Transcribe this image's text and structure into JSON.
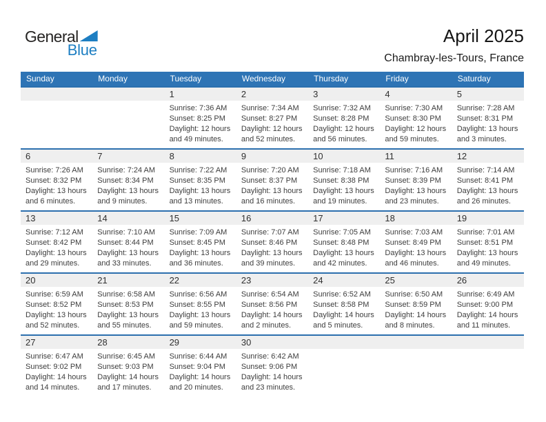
{
  "logo": {
    "part1": "General",
    "part2": "Blue"
  },
  "header": {
    "title": "April 2025",
    "subtitle": "Chambray-les-Tours, France"
  },
  "colors": {
    "header_blue": "#2e74b5",
    "row_border_blue": "#2b6fae",
    "day_strip_gray": "#efefef",
    "logo_blue": "#1d7ec2"
  },
  "calendar": {
    "weekdays": [
      "Sunday",
      "Monday",
      "Tuesday",
      "Wednesday",
      "Thursday",
      "Friday",
      "Saturday"
    ],
    "weeks": [
      {
        "cells": [
          {
            "day": ""
          },
          {
            "day": ""
          },
          {
            "day": "1",
            "sunrise": "Sunrise: 7:36 AM",
            "sunset": "Sunset: 8:25 PM",
            "daylight_line1": "Daylight: 12 hours",
            "daylight_line2": "and 49 minutes."
          },
          {
            "day": "2",
            "sunrise": "Sunrise: 7:34 AM",
            "sunset": "Sunset: 8:27 PM",
            "daylight_line1": "Daylight: 12 hours",
            "daylight_line2": "and 52 minutes."
          },
          {
            "day": "3",
            "sunrise": "Sunrise: 7:32 AM",
            "sunset": "Sunset: 8:28 PM",
            "daylight_line1": "Daylight: 12 hours",
            "daylight_line2": "and 56 minutes."
          },
          {
            "day": "4",
            "sunrise": "Sunrise: 7:30 AM",
            "sunset": "Sunset: 8:30 PM",
            "daylight_line1": "Daylight: 12 hours",
            "daylight_line2": "and 59 minutes."
          },
          {
            "day": "5",
            "sunrise": "Sunrise: 7:28 AM",
            "sunset": "Sunset: 8:31 PM",
            "daylight_line1": "Daylight: 13 hours",
            "daylight_line2": "and 3 minutes."
          }
        ]
      },
      {
        "cells": [
          {
            "day": "6",
            "sunrise": "Sunrise: 7:26 AM",
            "sunset": "Sunset: 8:32 PM",
            "daylight_line1": "Daylight: 13 hours",
            "daylight_line2": "and 6 minutes."
          },
          {
            "day": "7",
            "sunrise": "Sunrise: 7:24 AM",
            "sunset": "Sunset: 8:34 PM",
            "daylight_line1": "Daylight: 13 hours",
            "daylight_line2": "and 9 minutes."
          },
          {
            "day": "8",
            "sunrise": "Sunrise: 7:22 AM",
            "sunset": "Sunset: 8:35 PM",
            "daylight_line1": "Daylight: 13 hours",
            "daylight_line2": "and 13 minutes."
          },
          {
            "day": "9",
            "sunrise": "Sunrise: 7:20 AM",
            "sunset": "Sunset: 8:37 PM",
            "daylight_line1": "Daylight: 13 hours",
            "daylight_line2": "and 16 minutes."
          },
          {
            "day": "10",
            "sunrise": "Sunrise: 7:18 AM",
            "sunset": "Sunset: 8:38 PM",
            "daylight_line1": "Daylight: 13 hours",
            "daylight_line2": "and 19 minutes."
          },
          {
            "day": "11",
            "sunrise": "Sunrise: 7:16 AM",
            "sunset": "Sunset: 8:39 PM",
            "daylight_line1": "Daylight: 13 hours",
            "daylight_line2": "and 23 minutes."
          },
          {
            "day": "12",
            "sunrise": "Sunrise: 7:14 AM",
            "sunset": "Sunset: 8:41 PM",
            "daylight_line1": "Daylight: 13 hours",
            "daylight_line2": "and 26 minutes."
          }
        ]
      },
      {
        "cells": [
          {
            "day": "13",
            "sunrise": "Sunrise: 7:12 AM",
            "sunset": "Sunset: 8:42 PM",
            "daylight_line1": "Daylight: 13 hours",
            "daylight_line2": "and 29 minutes."
          },
          {
            "day": "14",
            "sunrise": "Sunrise: 7:10 AM",
            "sunset": "Sunset: 8:44 PM",
            "daylight_line1": "Daylight: 13 hours",
            "daylight_line2": "and 33 minutes."
          },
          {
            "day": "15",
            "sunrise": "Sunrise: 7:09 AM",
            "sunset": "Sunset: 8:45 PM",
            "daylight_line1": "Daylight: 13 hours",
            "daylight_line2": "and 36 minutes."
          },
          {
            "day": "16",
            "sunrise": "Sunrise: 7:07 AM",
            "sunset": "Sunset: 8:46 PM",
            "daylight_line1": "Daylight: 13 hours",
            "daylight_line2": "and 39 minutes."
          },
          {
            "day": "17",
            "sunrise": "Sunrise: 7:05 AM",
            "sunset": "Sunset: 8:48 PM",
            "daylight_line1": "Daylight: 13 hours",
            "daylight_line2": "and 42 minutes."
          },
          {
            "day": "18",
            "sunrise": "Sunrise: 7:03 AM",
            "sunset": "Sunset: 8:49 PM",
            "daylight_line1": "Daylight: 13 hours",
            "daylight_line2": "and 46 minutes."
          },
          {
            "day": "19",
            "sunrise": "Sunrise: 7:01 AM",
            "sunset": "Sunset: 8:51 PM",
            "daylight_line1": "Daylight: 13 hours",
            "daylight_line2": "and 49 minutes."
          }
        ]
      },
      {
        "cells": [
          {
            "day": "20",
            "sunrise": "Sunrise: 6:59 AM",
            "sunset": "Sunset: 8:52 PM",
            "daylight_line1": "Daylight: 13 hours",
            "daylight_line2": "and 52 minutes."
          },
          {
            "day": "21",
            "sunrise": "Sunrise: 6:58 AM",
            "sunset": "Sunset: 8:53 PM",
            "daylight_line1": "Daylight: 13 hours",
            "daylight_line2": "and 55 minutes."
          },
          {
            "day": "22",
            "sunrise": "Sunrise: 6:56 AM",
            "sunset": "Sunset: 8:55 PM",
            "daylight_line1": "Daylight: 13 hours",
            "daylight_line2": "and 59 minutes."
          },
          {
            "day": "23",
            "sunrise": "Sunrise: 6:54 AM",
            "sunset": "Sunset: 8:56 PM",
            "daylight_line1": "Daylight: 14 hours",
            "daylight_line2": "and 2 minutes."
          },
          {
            "day": "24",
            "sunrise": "Sunrise: 6:52 AM",
            "sunset": "Sunset: 8:58 PM",
            "daylight_line1": "Daylight: 14 hours",
            "daylight_line2": "and 5 minutes."
          },
          {
            "day": "25",
            "sunrise": "Sunrise: 6:50 AM",
            "sunset": "Sunset: 8:59 PM",
            "daylight_line1": "Daylight: 14 hours",
            "daylight_line2": "and 8 minutes."
          },
          {
            "day": "26",
            "sunrise": "Sunrise: 6:49 AM",
            "sunset": "Sunset: 9:00 PM",
            "daylight_line1": "Daylight: 14 hours",
            "daylight_line2": "and 11 minutes."
          }
        ]
      },
      {
        "cells": [
          {
            "day": "27",
            "sunrise": "Sunrise: 6:47 AM",
            "sunset": "Sunset: 9:02 PM",
            "daylight_line1": "Daylight: 14 hours",
            "daylight_line2": "and 14 minutes."
          },
          {
            "day": "28",
            "sunrise": "Sunrise: 6:45 AM",
            "sunset": "Sunset: 9:03 PM",
            "daylight_line1": "Daylight: 14 hours",
            "daylight_line2": "and 17 minutes."
          },
          {
            "day": "29",
            "sunrise": "Sunrise: 6:44 AM",
            "sunset": "Sunset: 9:04 PM",
            "daylight_line1": "Daylight: 14 hours",
            "daylight_line2": "and 20 minutes."
          },
          {
            "day": "30",
            "sunrise": "Sunrise: 6:42 AM",
            "sunset": "Sunset: 9:06 PM",
            "daylight_line1": "Daylight: 14 hours",
            "daylight_line2": "and 23 minutes."
          },
          {
            "day": ""
          },
          {
            "day": ""
          },
          {
            "day": ""
          }
        ]
      }
    ]
  }
}
